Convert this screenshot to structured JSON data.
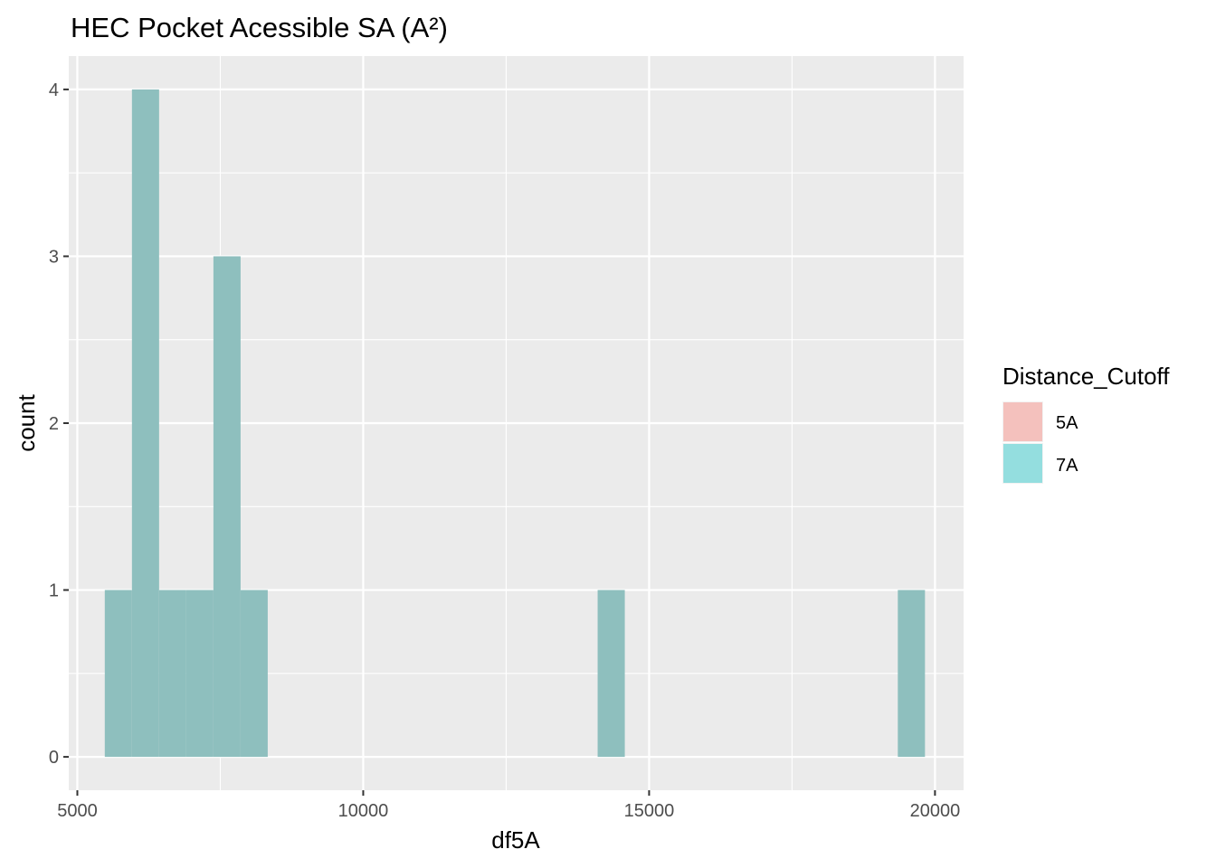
{
  "chart_data": {
    "type": "bar",
    "subtype": "histogram",
    "title": "HEC Pocket Acessible SA (A²)",
    "xlabel": "df5A",
    "ylabel": "count",
    "xlim": [
      4850,
      20500
    ],
    "ylim": [
      -0.2,
      4.2
    ],
    "x_ticks": [
      5000,
      10000,
      15000,
      20000
    ],
    "x_tick_labels": [
      "5000",
      "10000",
      "15000",
      "20000"
    ],
    "y_ticks": [
      0,
      1,
      2,
      3,
      4
    ],
    "y_tick_labels": [
      "0",
      "1",
      "2",
      "3",
      "4"
    ],
    "grid": true,
    "bin_width": 475,
    "series": [
      {
        "name": "7A",
        "color": "#8ebfbe",
        "bins": [
          {
            "x0": 5480,
            "x1": 5955,
            "count": 1
          },
          {
            "x0": 5955,
            "x1": 6430,
            "count": 4
          },
          {
            "x0": 6430,
            "x1": 6905,
            "count": 1
          },
          {
            "x0": 6905,
            "x1": 7380,
            "count": 1
          },
          {
            "x0": 7380,
            "x1": 7855,
            "count": 3
          },
          {
            "x0": 7855,
            "x1": 8330,
            "count": 1
          },
          {
            "x0": 14100,
            "x1": 14575,
            "count": 1
          },
          {
            "x0": 19350,
            "x1": 19825,
            "count": 1
          }
        ]
      }
    ],
    "legend": {
      "title": "Distance_Cutoff",
      "position": "right",
      "entries": [
        {
          "label": "5A",
          "color": "#f4c1bd"
        },
        {
          "label": "7A",
          "color": "#94dedf"
        }
      ]
    },
    "colors": {
      "panel_background": "#ebebeb",
      "grid": "#ffffff",
      "bar": "#8ebfbe"
    }
  }
}
